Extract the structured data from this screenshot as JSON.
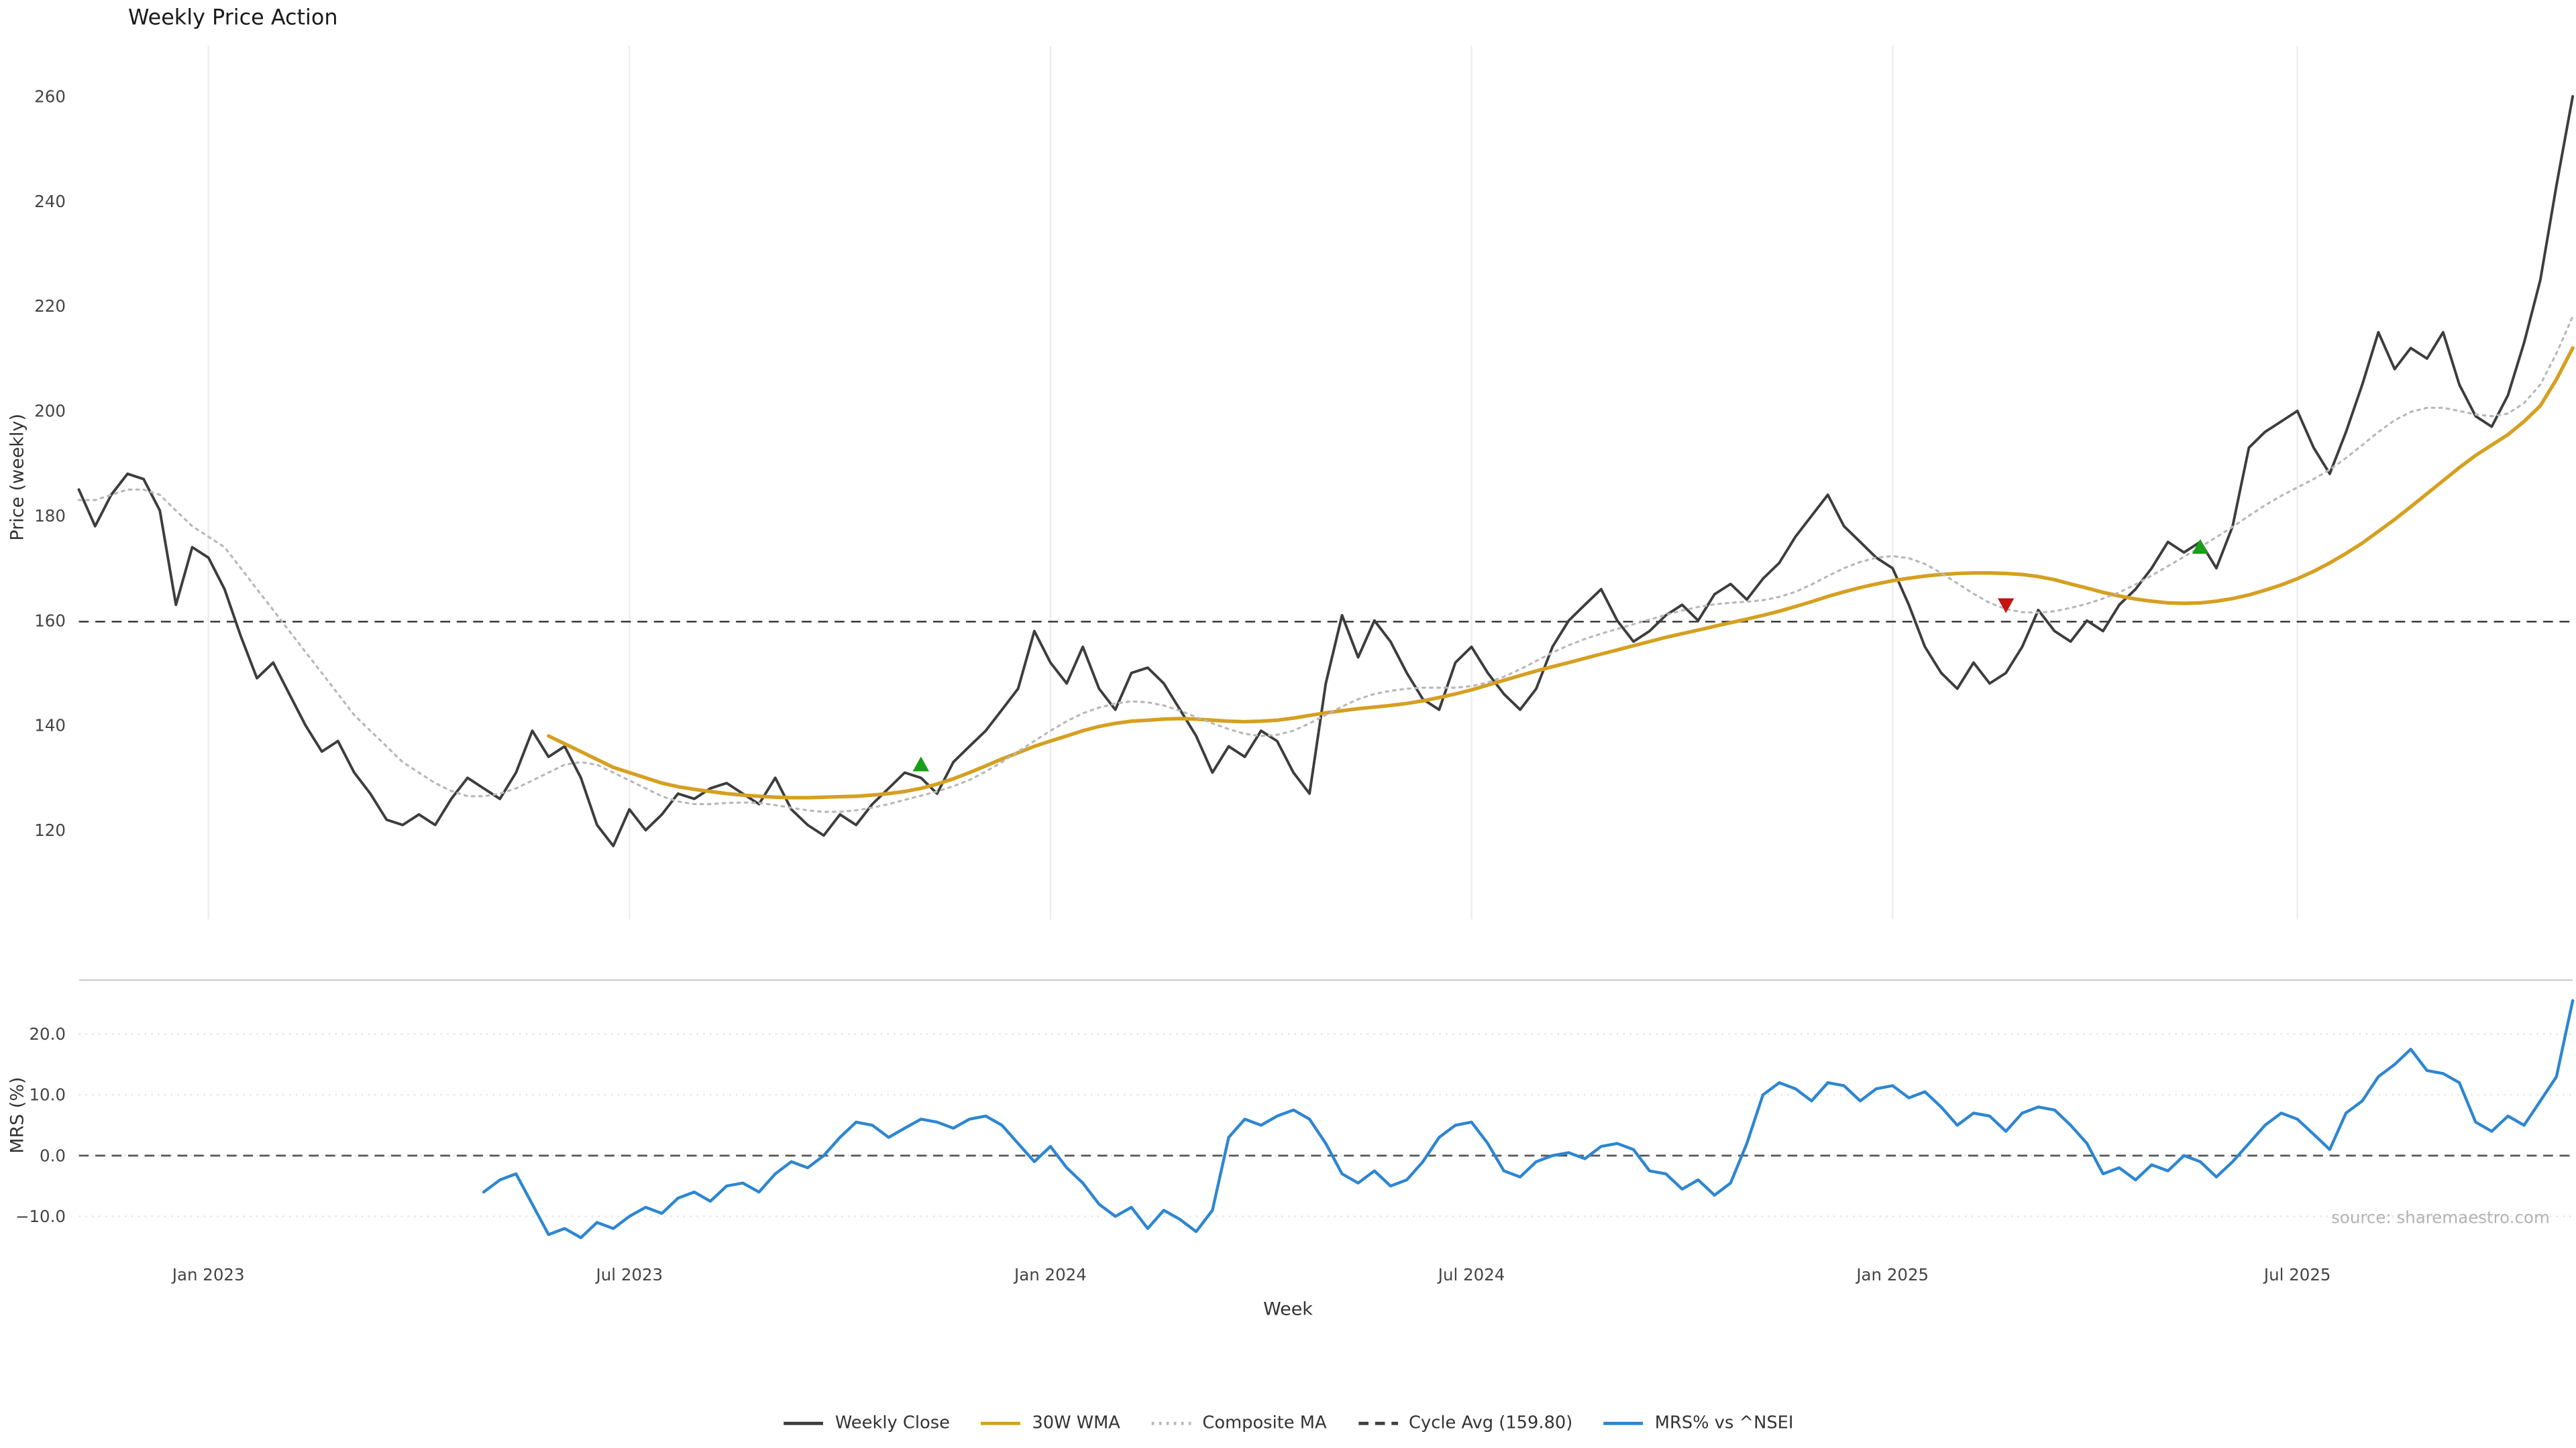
{
  "title": "Weekly Price Action",
  "footer": {
    "source": "source: sharemaestro.com"
  },
  "legend": {
    "items": [
      {
        "label": "Weekly Close",
        "color": "#3d3d3d",
        "style": "solid"
      },
      {
        "label": "30W WMA",
        "color": "#d5a021",
        "style": "solid"
      },
      {
        "label": "Composite MA",
        "color": "#b8b8b8",
        "style": "dotted"
      },
      {
        "label": "Cycle Avg (159.80)",
        "color": "#404040",
        "style": "dashed"
      },
      {
        "label": "MRS% vs ^NSEI",
        "color": "#2e86d1",
        "style": "solid"
      }
    ]
  },
  "chart_data": {
    "type": "line",
    "title": "Weekly Price Action",
    "xlabel": "Week",
    "total_weeks": 155,
    "x_ticks": [
      {
        "week": 8,
        "label": "Jan 2023"
      },
      {
        "week": 34,
        "label": "Jul 2023"
      },
      {
        "week": 60,
        "label": "Jan 2024"
      },
      {
        "week": 86,
        "label": "Jul 2024"
      },
      {
        "week": 112,
        "label": "Jan 2025"
      },
      {
        "week": 137,
        "label": "Jul 2025"
      }
    ],
    "panels": [
      {
        "name": "price",
        "ylabel": "Price (weekly)",
        "ylim": [
          103,
          269
        ],
        "yticks": [
          120,
          140,
          160,
          180,
          200,
          220,
          240,
          260
        ],
        "ytick_labels": [
          "120",
          "140",
          "160",
          "180",
          "200",
          "220",
          "240",
          "260"
        ],
        "hlines": [
          {
            "label": "Cycle Avg (159.80)",
            "value": 159.8,
            "style": "dashed",
            "color": "#404040"
          }
        ],
        "markers": [
          {
            "week": 52,
            "value": 132.5,
            "shape": "triangle-up",
            "color": "#18a018"
          },
          {
            "week": 119,
            "value": 163,
            "shape": "triangle-down",
            "color": "#c41212"
          },
          {
            "week": 131,
            "value": 174,
            "shape": "triangle-up",
            "color": "#18a018"
          }
        ],
        "series": [
          {
            "name": "Weekly Close",
            "color": "#3d3d3d",
            "style": "solid",
            "width": 1.6,
            "start_week": 0,
            "values": [
              185,
              178,
              184,
              188,
              187,
              181,
              163,
              174,
              172,
              166,
              157,
              149,
              152,
              146,
              140,
              135,
              137,
              131,
              127,
              122,
              121,
              123,
              121,
              126,
              130,
              128,
              126,
              131,
              139,
              134,
              136,
              130,
              121,
              117,
              124,
              120,
              123,
              127,
              126,
              128,
              129,
              127,
              125,
              130,
              124,
              121,
              119,
              123,
              121,
              125,
              128,
              131,
              130,
              127,
              133,
              136,
              139,
              143,
              147,
              158,
              152,
              148,
              155,
              147,
              143,
              150,
              151,
              148,
              143,
              138,
              131,
              136,
              134,
              139,
              137,
              131,
              127,
              148,
              161,
              153,
              160,
              156,
              150,
              145,
              143,
              152,
              155,
              150,
              146,
              143,
              147,
              155,
              160,
              163,
              166,
              160,
              156,
              158,
              161,
              163,
              160,
              165,
              167,
              164,
              168,
              171,
              176,
              180,
              184,
              178,
              175,
              172,
              170,
              163,
              155,
              150,
              147,
              152,
              148,
              150,
              155,
              162,
              158,
              156,
              160,
              158,
              163,
              166,
              170,
              175,
              173,
              175,
              170,
              178,
              193,
              196,
              198,
              200,
              193,
              188,
              196,
              205,
              215,
              208,
              212,
              210,
              215,
              205,
              199,
              197,
              203,
              213,
              225,
              243,
              260
            ]
          },
          {
            "name": "30W WMA",
            "color": "#d5a021",
            "style": "solid",
            "width": 2.2,
            "start_week": 29,
            "values": [
              138,
              136.5,
              135,
              133.5,
              132,
              131,
              130,
              129,
              128.3,
              127.8,
              127.4,
              127,
              126.7,
              126.5,
              126.3,
              126.2,
              126.2,
              126.3,
              126.4,
              126.5,
              126.7,
              127,
              127.4,
              128,
              128.8,
              129.8,
              131,
              132.3,
              133.6,
              134.8,
              136,
              137,
              138,
              139,
              139.8,
              140.4,
              140.8,
              141,
              141.2,
              141.3,
              141.2,
              141,
              140.8,
              140.7,
              140.8,
              141,
              141.4,
              141.9,
              142.4,
              142.8,
              143.2,
              143.5,
              143.8,
              144.2,
              144.7,
              145.3,
              146,
              146.8,
              147.7,
              148.6,
              149.5,
              150.4,
              151.2,
              152,
              152.8,
              153.6,
              154.4,
              155.2,
              156,
              156.8,
              157.5,
              158.2,
              158.9,
              159.6,
              160.3,
              161,
              161.8,
              162.7,
              163.6,
              164.6,
              165.5,
              166.3,
              167,
              167.6,
              168.1,
              168.5,
              168.8,
              169,
              169.1,
              169.1,
              169,
              168.8,
              168.4,
              167.8,
              167,
              166.2,
              165.4,
              164.7,
              164.1,
              163.7,
              163.4,
              163.3,
              163.4,
              163.7,
              164.2,
              164.9,
              165.8,
              166.8,
              168,
              169.4,
              171,
              172.8,
              174.8,
              177,
              179.3,
              181.7,
              184.2,
              186.7,
              189.2,
              191.5,
              193.5,
              195.5,
              198,
              201,
              206,
              212
            ]
          },
          {
            "name": "Composite MA",
            "color": "#b8b8b8",
            "style": "dotted",
            "width": 1.3,
            "start_week": 0,
            "values": [
              183,
              183,
              184,
              185,
              185,
              184,
              181,
              178,
              176,
              174,
              170,
              166,
              162,
              158,
              154,
              150,
              146,
              142,
              139,
              136,
              133,
              131,
              129,
              127.5,
              126.5,
              126.5,
              127,
              128,
              129.5,
              131,
              132.5,
              133,
              132.5,
              131,
              129.5,
              128,
              126.5,
              125.5,
              125,
              125,
              125.2,
              125.3,
              125.2,
              124.8,
              124.3,
              123.8,
              123.5,
              123.5,
              123.8,
              124.3,
              125,
              125.8,
              126.6,
              127.4,
              128.4,
              129.6,
              131.2,
              133,
              135,
              137,
              139,
              140.8,
              142.3,
              143.4,
              144.2,
              144.6,
              144.4,
              143.8,
              142.8,
              141.6,
              140.4,
              139.3,
              138.4,
              138,
              138.2,
              139,
              140.4,
              142,
              143.6,
              145,
              146,
              146.6,
              147,
              147.2,
              147.2,
              147.2,
              147.5,
              148.2,
              149.3,
              150.7,
              152.3,
              153.9,
              155.3,
              156.5,
              157.5,
              158.4,
              159.3,
              160.2,
              161.1,
              161.9,
              162.6,
              163.1,
              163.4,
              163.6,
              163.9,
              164.5,
              165.5,
              166.9,
              168.5,
              170,
              171.2,
              172,
              172.3,
              171.9,
              170.8,
              169.1,
              167.1,
              165.1,
              163.4,
              162.2,
              161.6,
              161.5,
              161.8,
              162.4,
              163.2,
              164.2,
              165.4,
              166.9,
              168.6,
              170.4,
              172.2,
              174,
              175.9,
              177.9,
              180,
              182,
              183.8,
              185.4,
              187,
              188.8,
              191,
              193.5,
              196,
              198.2,
              199.8,
              200.6,
              200.6,
              200,
              199.3,
              199,
              199.5,
              201.5,
              205,
              211,
              218
            ]
          }
        ]
      },
      {
        "name": "mrs",
        "ylabel": "MRS (%)",
        "ylim": [
          -16.5,
          28.6
        ],
        "yticks": [
          20,
          10,
          0,
          -10
        ],
        "ytick_labels": [
          "20.0",
          "10.0",
          "0.0",
          "−10.0"
        ],
        "hlines": [
          {
            "label": "zero-line",
            "value": 0,
            "style": "dashed",
            "color": "#555555"
          }
        ],
        "markers": [],
        "series": [
          {
            "name": "MRS% vs ^NSEI",
            "color": "#2e86d1",
            "style": "solid",
            "width": 1.8,
            "start_week": 25,
            "values": [
              -6,
              -4,
              -3,
              -8,
              -13,
              -12,
              -13.5,
              -11,
              -12,
              -10,
              -8.5,
              -9.5,
              -7,
              -6,
              -7.5,
              -5,
              -4.5,
              -6,
              -3,
              -1,
              -2,
              0,
              3,
              5.5,
              5,
              3,
              4.5,
              6,
              5.5,
              4.5,
              6,
              6.5,
              5,
              2,
              -1,
              1.5,
              -2,
              -4.5,
              -8,
              -10,
              -8.5,
              -12,
              -9,
              -10.5,
              -12.5,
              -9,
              3,
              6,
              5,
              6.5,
              7.5,
              6,
              2,
              -3,
              -4.5,
              -2.5,
              -5,
              -4,
              -1,
              3,
              5,
              5.5,
              2,
              -2.5,
              -3.5,
              -1,
              0,
              0.5,
              -0.5,
              1.5,
              2,
              1,
              -2.5,
              -3,
              -5.5,
              -4,
              -6.5,
              -4.5,
              2,
              10,
              12,
              11,
              9,
              12,
              11.5,
              9,
              11,
              11.5,
              9.5,
              10.5,
              8,
              5,
              7,
              6.5,
              4,
              7,
              8,
              7.5,
              5,
              2,
              -3,
              -2,
              -4,
              -1.5,
              -2.5,
              0,
              -1,
              -3.5,
              -1,
              2,
              5,
              7,
              6,
              3.5,
              1,
              7,
              9,
              13,
              15,
              17.5,
              14,
              13.5,
              12,
              5.5,
              4,
              6.5,
              5,
              9,
              13,
              25.5
            ]
          }
        ]
      }
    ]
  }
}
